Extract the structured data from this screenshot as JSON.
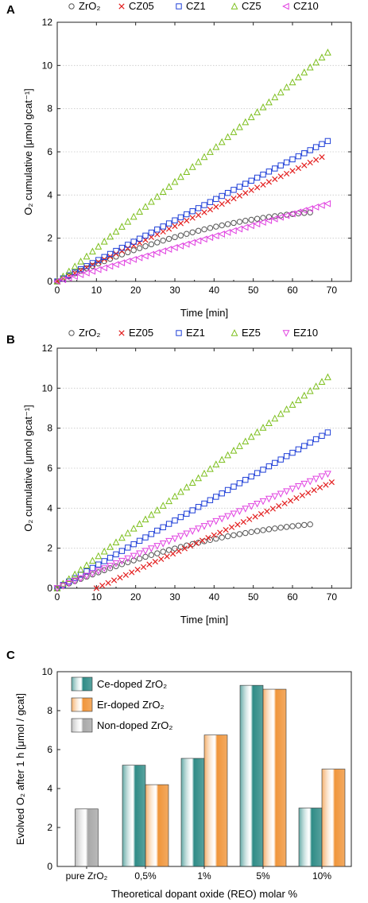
{
  "chart_data": [
    {
      "panel": "A",
      "type": "scatter",
      "xlabel": "Time [min]",
      "ylabel": "O₂ cumulative [μmol gcat⁻¹]",
      "xlim": [
        0,
        75
      ],
      "ylim": [
        0,
        12
      ],
      "xticks": [
        "0",
        "10",
        "20",
        "30",
        "40",
        "50",
        "60",
        "70"
      ],
      "yticks": [
        "0",
        "2",
        "4",
        "6",
        "8",
        "10",
        "12"
      ],
      "grid": "horizontal dotted",
      "legend": "top",
      "series": [
        {
          "name": "ZrO₂",
          "marker": "circle",
          "color": "#555555",
          "x_end": 65,
          "y_end": 3.2,
          "curve": 0.45
        },
        {
          "name": "CZ05",
          "marker": "x",
          "color": "#e32020",
          "x_end": 68,
          "y_end": 5.8,
          "curve": 0.0
        },
        {
          "name": "CZ1",
          "marker": "square",
          "color": "#2040d8",
          "x_end": 69,
          "y_end": 6.5,
          "curve": 0.0
        },
        {
          "name": "CZ5",
          "marker": "triangle-up",
          "color": "#7cbf1c",
          "x_end": 69,
          "y_end": 10.6,
          "curve": 0.0
        },
        {
          "name": "CZ10",
          "marker": "triangle-left",
          "color": "#e040e0",
          "x_end": 69,
          "y_end": 3.6,
          "curve": 0.0
        }
      ]
    },
    {
      "panel": "B",
      "type": "scatter",
      "xlabel": "Time [min]",
      "ylabel": "O₂ cumulative [μmol gcat⁻¹]",
      "xlim": [
        0,
        75
      ],
      "ylim": [
        0,
        12
      ],
      "xticks": [
        "0",
        "10",
        "20",
        "30",
        "40",
        "50",
        "60",
        "70"
      ],
      "yticks": [
        "0",
        "2",
        "4",
        "6",
        "8",
        "10",
        "12"
      ],
      "grid": "horizontal dotted",
      "legend": "top",
      "series": [
        {
          "name": "ZrO₂",
          "marker": "circle",
          "color": "#555555",
          "x_end": 65,
          "y_end": 3.2,
          "curve": 0.4
        },
        {
          "name": "EZ05",
          "marker": "x",
          "color": "#e32020",
          "x_start": 10,
          "x_end": 70,
          "y_end": 5.3,
          "curve": 0.0
        },
        {
          "name": "EZ1",
          "marker": "square",
          "color": "#2040d8",
          "x_end": 70,
          "y_end": 7.9,
          "curve": 0.0
        },
        {
          "name": "EZ5",
          "marker": "triangle-up",
          "color": "#7cbf1c",
          "x_end": 70,
          "y_end": 10.7,
          "curve": 0.0
        },
        {
          "name": "EZ10",
          "marker": "triangle-down",
          "color": "#e040e0",
          "x_end": 70,
          "y_end": 5.8,
          "curve": 0.0
        }
      ]
    },
    {
      "panel": "C",
      "type": "bar",
      "xlabel": "Theoretical dopant oxide (REO) molar %",
      "ylabel": "Evolved O₂ after 1 h [μmol / gcat]",
      "ylim": [
        0,
        10
      ],
      "yticks": [
        "0",
        "2",
        "4",
        "6",
        "8",
        "10"
      ],
      "legend": "top-left",
      "categories": [
        "pure ZrO₂",
        "0,5%",
        "1%",
        "5%",
        "10%"
      ],
      "series": [
        {
          "name": "Ce-doped ZrO₂",
          "color": "#2e8b86",
          "values": [
            null,
            5.2,
            5.55,
            9.3,
            3.0
          ]
        },
        {
          "name": "Er-doped ZrO₂",
          "color": "#f0953a",
          "values": [
            null,
            4.2,
            6.75,
            9.1,
            5.0
          ]
        },
        {
          "name": "Non-doped ZrO₂",
          "color": "#a8a8a8",
          "values": [
            2.95,
            null,
            null,
            null,
            null
          ]
        }
      ]
    }
  ]
}
